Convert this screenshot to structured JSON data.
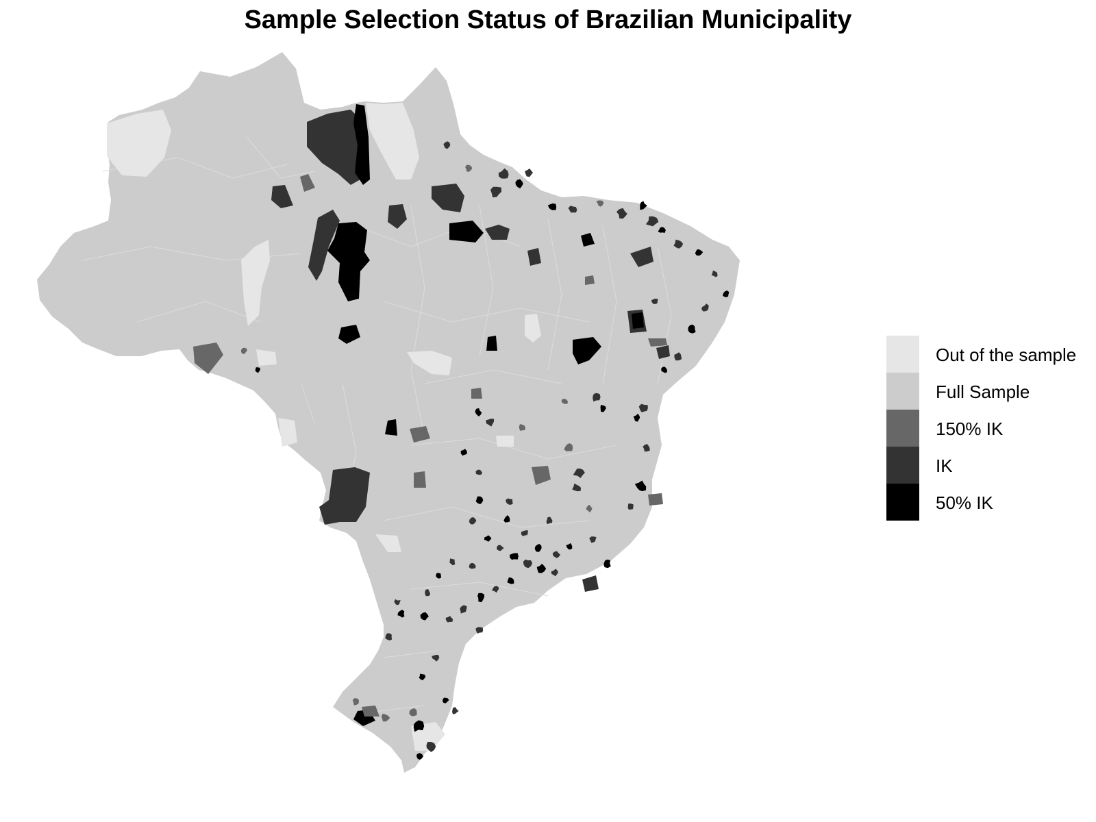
{
  "title": "Sample Selection Status of Brazilian Municipality",
  "legend": {
    "items": [
      {
        "label": "Out of the sample",
        "color": "#e6e6e6"
      },
      {
        "label": "Full Sample",
        "color": "#cccccc"
      },
      {
        "label": "150% IK",
        "color": "#676767"
      },
      {
        "label": "IK",
        "color": "#333333"
      },
      {
        "label": "50% IK",
        "color": "#000000"
      }
    ]
  },
  "map": {
    "country": "Brazil",
    "unit": "municipality",
    "colors": {
      "out": "#e6e6e6",
      "full": "#cccccc",
      "ik150": "#676767",
      "ik": "#333333",
      "ik50": "#000000",
      "border": "#dcdcdc"
    }
  }
}
